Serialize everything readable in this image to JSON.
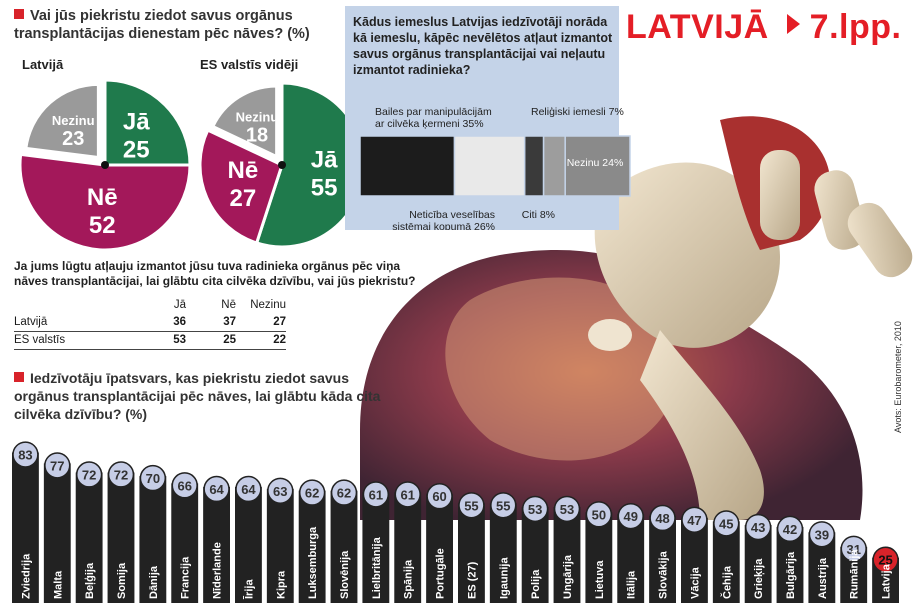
{
  "header": {
    "section": "LATVIJĀ",
    "page": "7.lpp."
  },
  "q1": {
    "title": "Vai jūs piekristu ziedot savus orgānus transplantācijas dienestam pēc nāves? (%)",
    "pies": [
      {
        "label": "Latvijā",
        "slices": [
          {
            "name": "Nezinu",
            "value": 23
          },
          {
            "name": "Jā",
            "value": 25
          },
          {
            "name": "Nē",
            "value": 52
          }
        ]
      },
      {
        "label": "ES valstīs vidēji",
        "slices": [
          {
            "name": "Nezinu",
            "value": 18
          },
          {
            "name": "Jā",
            "value": 55
          },
          {
            "name": "Nē",
            "value": 27
          }
        ]
      }
    ]
  },
  "q2": {
    "title": "Kādus iemeslus Latvijas iedzīvotāji norāda kā iemeslu, kāpēc nevēlētos atļaut izmantot savus orgānus transplantācijai vai neļautu izmantot radinieka?",
    "segments": [
      {
        "label": "Bailes par manipulācijām ar cilvēka ķermeni",
        "value_label": "35%",
        "value": 35
      },
      {
        "label": "Neticība veselības sistēmai kopumā",
        "value_label": "26%",
        "value": 26
      },
      {
        "label": "Reliģiski iemesli",
        "value_label": "7%",
        "value": 7
      },
      {
        "label": "Citi",
        "value_label": "8%",
        "value": 8
      },
      {
        "label": "Nezinu",
        "value_label": "24%",
        "value": 24
      }
    ]
  },
  "q3": {
    "title": "Ja jums lūgtu atļauju izmantot jūsu tuva radinieka orgānus pēc viņa nāves transplantācijai, lai glābtu cita cilvēka dzīvību, vai jūs piekristu?",
    "columns": [
      "Jā",
      "Nē",
      "Nezinu"
    ],
    "rows": [
      {
        "name": "Latvijā",
        "values": [
          "36",
          "37",
          "27"
        ]
      },
      {
        "name": "ES valstīs",
        "values": [
          "53",
          "25",
          "22"
        ]
      }
    ]
  },
  "chart_data": {
    "type": "bar",
    "title": "Iedzīvotāju īpatsvars, kas piekristu ziedot savus orgānus transplantācijai pēc nāves, lai glābtu kāda cita cilvēka dzīvību? (%)",
    "categories": [
      "Zviedrija",
      "Malta",
      "Beļģija",
      "Somija",
      "Dānija",
      "Francija",
      "Nīderlande",
      "Īrija",
      "Kipra",
      "Luksemburga",
      "Slovēnija",
      "Lielbritānija",
      "Spānija",
      "Portugāle",
      "ES (27)",
      "Igaunija",
      "Polija",
      "Ungārija",
      "Lietuva",
      "Itālija",
      "Slovākija",
      "Vācija",
      "Čehija",
      "Grieķija",
      "Bulgārija",
      "Austrija",
      "Rumānija",
      "Latvija"
    ],
    "values": [
      83,
      77,
      72,
      72,
      70,
      66,
      64,
      64,
      63,
      62,
      62,
      61,
      61,
      60,
      55,
      55,
      53,
      53,
      50,
      49,
      48,
      47,
      45,
      43,
      42,
      39,
      31,
      25
    ],
    "highlight": "Latvija",
    "ylim": [
      0,
      100
    ]
  },
  "source": "Avots: Eurobarometer, 2010",
  "colors": {
    "yes": "#1f7a4c",
    "no": "#a3185a",
    "unknown": "#9a9a9a",
    "accent": "#d8232a",
    "bar": "#222222",
    "badge": "#c6cde6"
  }
}
